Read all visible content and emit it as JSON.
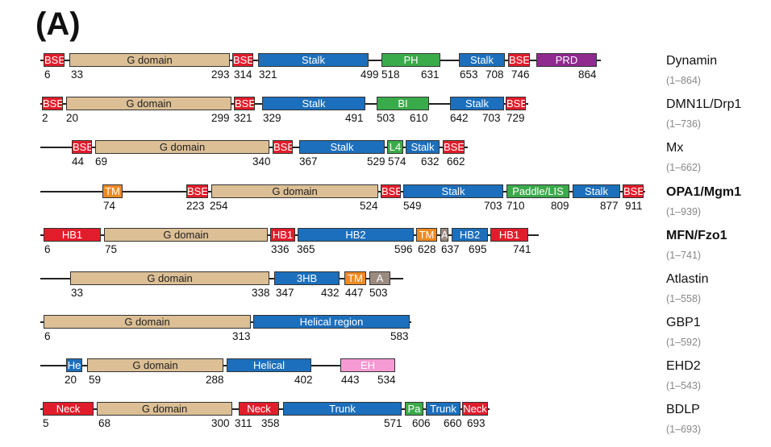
{
  "panel_label": "(A)",
  "colors": {
    "BSE": "#e21d2b",
    "G": "#dcbf95",
    "Stalk": "#1c6fbc",
    "green": "#3aab4a",
    "PRD": "#8f2a8e",
    "TM": "#ee8a22",
    "A": "#9b8a80",
    "EH": "#f59ad3"
  },
  "proteins": [
    {
      "name": "Dynamin",
      "range": "(1–864)",
      "bold": false,
      "domains": [
        {
          "label": "BSE",
          "type": "BSE"
        },
        {
          "label": "G domain",
          "type": "G"
        },
        {
          "label": "BSE",
          "type": "BSE"
        },
        {
          "label": "Stalk",
          "type": "Stalk"
        },
        {
          "label": "PH",
          "type": "green"
        },
        {
          "label": "Stalk",
          "type": "Stalk"
        },
        {
          "label": "BSE",
          "type": "BSE"
        },
        {
          "label": "PRD",
          "type": "PRD"
        }
      ],
      "numbers": [
        "6",
        "33",
        "293",
        "314",
        "321",
        "499",
        "518",
        "631",
        "653",
        "708",
        "746",
        "864"
      ]
    },
    {
      "name": "DMN1L/Drp1",
      "range": "(1–736)",
      "bold": false,
      "domains": [
        {
          "label": "BSE",
          "type": "BSE"
        },
        {
          "label": "G domain",
          "type": "G"
        },
        {
          "label": "BSE",
          "type": "BSE"
        },
        {
          "label": "Stalk",
          "type": "Stalk"
        },
        {
          "label": "BI",
          "type": "green"
        },
        {
          "label": "Stalk",
          "type": "Stalk"
        },
        {
          "label": "BSE",
          "type": "BSE"
        }
      ],
      "numbers": [
        "2",
        "20",
        "299",
        "321",
        "329",
        "491",
        "503",
        "610",
        "642",
        "703",
        "729"
      ]
    },
    {
      "name": "Mx",
      "range": "(1–662)",
      "bold": false,
      "domains": [
        {
          "label": "BSE",
          "type": "BSE"
        },
        {
          "label": "G domain",
          "type": "G"
        },
        {
          "label": "BSE",
          "type": "BSE"
        },
        {
          "label": "Stalk",
          "type": "Stalk"
        },
        {
          "label": "L4",
          "type": "green"
        },
        {
          "label": "Stalk",
          "type": "Stalk"
        },
        {
          "label": "BSE",
          "type": "BSE"
        }
      ],
      "numbers": [
        "44",
        "69",
        "340",
        "367",
        "529",
        "574",
        "632",
        "662"
      ]
    },
    {
      "name": "OPA1/Mgm1",
      "range": "(1–939)",
      "bold": true,
      "domains": [
        {
          "label": "TM",
          "type": "TM"
        },
        {
          "label": "BSE",
          "type": "BSE"
        },
        {
          "label": "G domain",
          "type": "G"
        },
        {
          "label": "BSE",
          "type": "BSE"
        },
        {
          "label": "Stalk",
          "type": "Stalk"
        },
        {
          "label": "Paddle/LIS",
          "type": "green"
        },
        {
          "label": "Stalk",
          "type": "Stalk"
        },
        {
          "label": "BSE",
          "type": "BSE"
        }
      ],
      "numbers": [
        "74",
        "223",
        "254",
        "524",
        "549",
        "703",
        "710",
        "809",
        "877",
        "911"
      ]
    },
    {
      "name": "MFN/Fzo1",
      "range": "(1–741)",
      "bold": true,
      "domains": [
        {
          "label": "HB1",
          "type": "BSE"
        },
        {
          "label": "G domain",
          "type": "G"
        },
        {
          "label": "HB1",
          "type": "BSE"
        },
        {
          "label": "HB2",
          "type": "Stalk"
        },
        {
          "label": "TM",
          "type": "TM"
        },
        {
          "label": "A",
          "type": "A"
        },
        {
          "label": "HB2",
          "type": "Stalk"
        },
        {
          "label": "HB1",
          "type": "BSE"
        }
      ],
      "numbers": [
        "6",
        "75",
        "336",
        "365",
        "596",
        "628",
        "637",
        "695",
        "741"
      ]
    },
    {
      "name": "Atlastin",
      "range": "(1–558)",
      "bold": false,
      "domains": [
        {
          "label": "G domain",
          "type": "G"
        },
        {
          "label": "3HB",
          "type": "Stalk"
        },
        {
          "label": "TM",
          "type": "TM"
        },
        {
          "label": "A",
          "type": "A"
        }
      ],
      "numbers": [
        "33",
        "338",
        "347",
        "432",
        "447",
        "503"
      ]
    },
    {
      "name": "GBP1",
      "range": "(1–592)",
      "bold": false,
      "domains": [
        {
          "label": "G domain",
          "type": "G"
        },
        {
          "label": "Helical region",
          "type": "Stalk"
        }
      ],
      "numbers": [
        "6",
        "313",
        "583"
      ]
    },
    {
      "name": "EHD2",
      "range": "(1–543)",
      "bold": false,
      "domains": [
        {
          "label": "He",
          "type": "Stalk"
        },
        {
          "label": "G domain",
          "type": "G"
        },
        {
          "label": "Helical",
          "type": "Stalk"
        },
        {
          "label": "EH",
          "type": "EH"
        }
      ],
      "numbers": [
        "20",
        "59",
        "288",
        "402",
        "443",
        "534"
      ]
    },
    {
      "name": "BDLP",
      "range": "(1–693)",
      "bold": false,
      "domains": [
        {
          "label": "Neck",
          "type": "BSE"
        },
        {
          "label": "G domain",
          "type": "G"
        },
        {
          "label": "Neck",
          "type": "BSE"
        },
        {
          "label": "Trunk",
          "type": "Stalk"
        },
        {
          "label": "Pa",
          "type": "green"
        },
        {
          "label": "Trunk",
          "type": "Stalk"
        },
        {
          "label": "Neck",
          "type": "BSE"
        }
      ],
      "numbers": [
        "5",
        "68",
        "300",
        "311",
        "358",
        "571",
        "606",
        "660",
        "693"
      ]
    }
  ]
}
